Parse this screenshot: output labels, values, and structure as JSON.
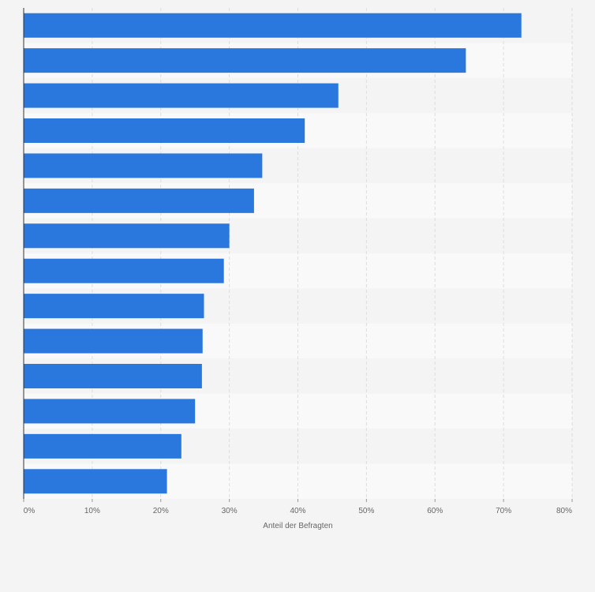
{
  "chart_data": {
    "type": "bar",
    "orientation": "horizontal",
    "title": "",
    "xlabel": "Anteil der Befragten",
    "ylabel": "",
    "xlim": [
      0,
      80
    ],
    "ticks": [
      0,
      10,
      20,
      30,
      40,
      50,
      60,
      70,
      80
    ],
    "tick_labels": [
      "0%",
      "10%",
      "20%",
      "30%",
      "40%",
      "50%",
      "60%",
      "70%",
      "80%"
    ],
    "series": [
      {
        "name": "Anteil der Befragten",
        "values": [
          72.6,
          64.5,
          45.9,
          41.0,
          34.8,
          33.6,
          30.0,
          29.2,
          26.3,
          26.1,
          26.0,
          25.0,
          23.0,
          20.9
        ]
      }
    ],
    "grid": true,
    "legend": "none"
  },
  "colors": {
    "bar": "#2a77dd",
    "band_dark": "#f4f4f4",
    "band_light": "#f9f9f9",
    "grid": "#dddddd",
    "axis": "#333333",
    "text": "#666666"
  }
}
